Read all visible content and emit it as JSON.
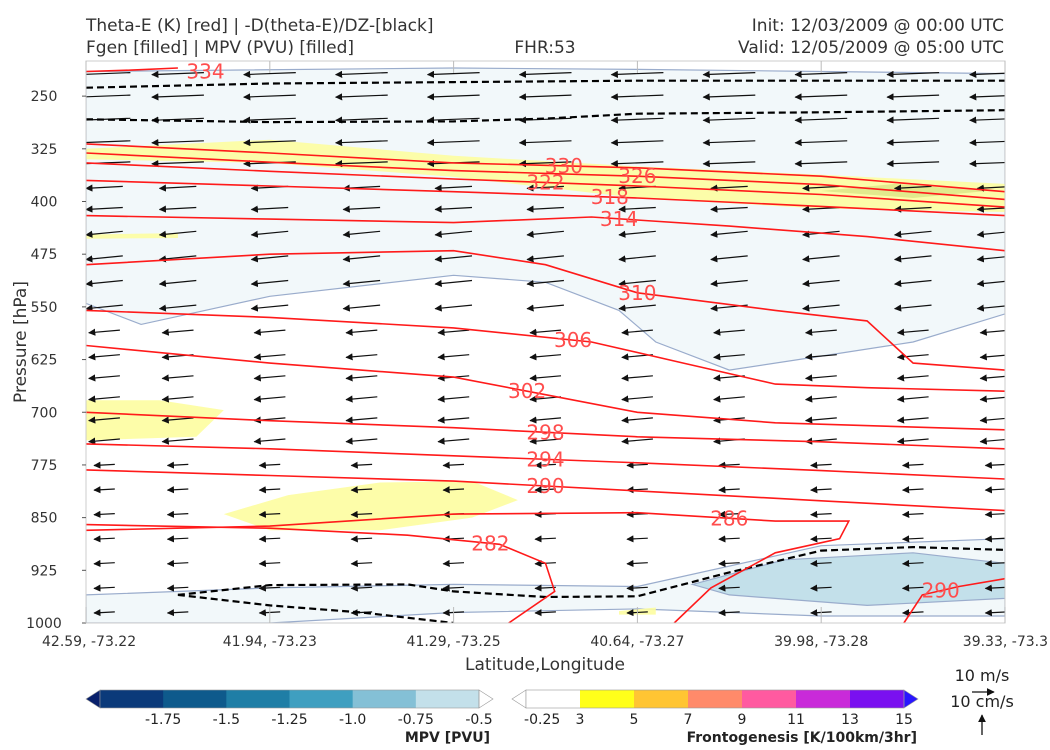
{
  "header": {
    "title_line1": "Theta-E (K) [red] | -D(theta-E)/DZ-[black]",
    "title_line2": "Fgen [filled] | MPV (PVU) [filled]",
    "fhr": "FHR:53",
    "init": "Init: 12/03/2009 @ 00:00 UTC",
    "valid": "Valid: 12/05/2009 @ 05:00 UTC"
  },
  "chart_data": {
    "type": "cross-section",
    "title": "Theta-E (K) [red] | -D(theta-E)/DZ-[black]  Fgen [filled] | MPV (PVU) [filled]",
    "xlabel": "Latitude,Longitude",
    "ylabel": "Pressure [hPa]",
    "ylim": [
      1000,
      200
    ],
    "x_ticks": [
      "42.59, -73.22",
      "41.94, -73.23",
      "41.29, -73.25",
      "40.64, -73.27",
      "39.98, -73.28",
      "39.33, -73.3"
    ],
    "y_ticks": [
      250,
      325,
      400,
      475,
      550,
      625,
      700,
      775,
      850,
      925,
      1000
    ],
    "theta_e_contours": [
      {
        "value": 334,
        "label": "334",
        "points": [
          [
            0.0,
            215
          ],
          [
            0.05,
            213
          ],
          [
            0.1,
            210
          ]
        ]
      },
      {
        "value": 330,
        "label": "330",
        "points": [
          [
            0.0,
            318
          ],
          [
            0.2,
            331
          ],
          [
            0.4,
            345
          ],
          [
            0.6,
            352
          ],
          [
            0.8,
            364
          ],
          [
            1.0,
            386
          ]
        ]
      },
      {
        "value": 326,
        "label": "326",
        "points": [
          [
            0.0,
            331
          ],
          [
            0.2,
            344
          ],
          [
            0.4,
            356
          ],
          [
            0.6,
            364
          ],
          [
            0.8,
            376
          ],
          [
            1.0,
            397
          ]
        ]
      },
      {
        "value": 322,
        "label": "322",
        "points": [
          [
            0.0,
            345
          ],
          [
            0.2,
            357
          ],
          [
            0.4,
            368
          ],
          [
            0.6,
            378
          ],
          [
            0.8,
            390
          ],
          [
            1.0,
            408
          ]
        ]
      },
      {
        "value": 318,
        "label": "318",
        "points": [
          [
            0.0,
            370
          ],
          [
            0.2,
            378
          ],
          [
            0.4,
            386
          ],
          [
            0.6,
            395
          ],
          [
            0.8,
            407
          ],
          [
            1.0,
            420
          ]
        ]
      },
      {
        "value": 314,
        "label": "314",
        "points": [
          [
            0.0,
            420
          ],
          [
            0.2,
            425
          ],
          [
            0.4,
            430
          ],
          [
            0.55,
            422
          ],
          [
            0.7,
            435
          ],
          [
            0.85,
            450
          ],
          [
            1.0,
            470
          ]
        ]
      },
      {
        "value": 310,
        "label": "310",
        "points": [
          [
            0.0,
            490
          ],
          [
            0.2,
            475
          ],
          [
            0.4,
            470
          ],
          [
            0.5,
            490
          ],
          [
            0.6,
            530
          ],
          [
            0.75,
            555
          ],
          [
            0.85,
            570
          ],
          [
            0.9,
            630
          ],
          [
            1.0,
            640
          ]
        ]
      },
      {
        "value": 306,
        "label": "306",
        "points": [
          [
            0.0,
            555
          ],
          [
            0.2,
            565
          ],
          [
            0.4,
            580
          ],
          [
            0.55,
            600
          ],
          [
            0.65,
            630
          ],
          [
            0.75,
            660
          ],
          [
            0.85,
            665
          ],
          [
            1.0,
            670
          ]
        ]
      },
      {
        "value": 302,
        "label": "302",
        "points": [
          [
            0.0,
            605
          ],
          [
            0.2,
            630
          ],
          [
            0.4,
            650
          ],
          [
            0.5,
            675
          ],
          [
            0.6,
            700
          ],
          [
            0.75,
            715
          ],
          [
            1.0,
            725
          ]
        ]
      },
      {
        "value": 298,
        "label": "298",
        "points": [
          [
            0.0,
            700
          ],
          [
            0.2,
            712
          ],
          [
            0.4,
            722
          ],
          [
            0.6,
            735
          ],
          [
            0.8,
            742
          ],
          [
            1.0,
            752
          ]
        ]
      },
      {
        "value": 294,
        "label": "294",
        "points": [
          [
            0.0,
            745
          ],
          [
            0.2,
            752
          ],
          [
            0.4,
            762
          ],
          [
            0.6,
            772
          ],
          [
            0.8,
            783
          ],
          [
            1.0,
            795
          ]
        ]
      },
      {
        "value": 290,
        "label": "290",
        "points": [
          [
            0.0,
            782
          ],
          [
            0.2,
            790
          ],
          [
            0.4,
            798
          ],
          [
            0.6,
            812
          ],
          [
            0.8,
            826
          ],
          [
            1.0,
            840
          ]
        ]
      },
      {
        "value": 286,
        "label": "286",
        "points": [
          [
            0.0,
            868
          ],
          [
            0.2,
            862
          ],
          [
            0.4,
            845
          ],
          [
            0.6,
            843
          ],
          [
            0.75,
            855
          ],
          [
            0.83,
            855
          ],
          [
            0.82,
            880
          ],
          [
            0.75,
            900
          ],
          [
            0.68,
            950
          ],
          [
            0.64,
            1000
          ]
        ]
      },
      {
        "value": 282,
        "label": "282",
        "points": [
          [
            0.0,
            860
          ],
          [
            0.2,
            865
          ],
          [
            0.35,
            875
          ],
          [
            0.45,
            888
          ],
          [
            0.5,
            915
          ],
          [
            0.51,
            955
          ],
          [
            0.46,
            1000
          ]
        ]
      },
      {
        "value": 290,
        "label": "290",
        "points": [
          [
            1.0,
            937
          ],
          [
            0.95,
            948
          ],
          [
            0.91,
            960
          ],
          [
            0.89,
            1000
          ]
        ]
      }
    ],
    "dthetae_dz_contours": [
      {
        "points": [
          [
            0.0,
            238
          ],
          [
            0.2,
            232
          ],
          [
            0.4,
            230
          ],
          [
            0.6,
            228
          ],
          [
            0.8,
            228
          ],
          [
            1.0,
            228
          ]
        ]
      },
      {
        "points": [
          [
            0.0,
            283
          ],
          [
            0.2,
            287
          ],
          [
            0.4,
            286
          ],
          [
            0.5,
            282
          ],
          [
            0.6,
            275
          ],
          [
            0.8,
            273
          ],
          [
            1.0,
            270
          ]
        ]
      },
      {
        "points": [
          [
            0.1,
            960
          ],
          [
            0.2,
            946
          ],
          [
            0.35,
            945
          ],
          [
            0.4,
            955
          ],
          [
            0.5,
            963
          ],
          [
            0.6,
            962
          ],
          [
            0.7,
            928
          ],
          [
            0.8,
            897
          ],
          [
            0.9,
            892
          ],
          [
            1.0,
            896
          ]
        ]
      },
      {
        "points": [
          [
            0.1,
            960
          ],
          [
            0.2,
            975
          ],
          [
            0.3,
            985
          ],
          [
            0.4,
            1000
          ]
        ]
      }
    ],
    "mpv_regions": [
      {
        "value": -0.25,
        "points": [
          [
            0.0,
            215
          ],
          [
            0.4,
            210
          ],
          [
            0.6,
            212
          ],
          [
            0.8,
            215
          ],
          [
            1.0,
            218
          ],
          [
            1.0,
            560
          ],
          [
            0.9,
            600
          ],
          [
            0.8,
            620
          ],
          [
            0.7,
            640
          ],
          [
            0.62,
            600
          ],
          [
            0.58,
            555
          ],
          [
            0.5,
            515
          ],
          [
            0.4,
            505
          ],
          [
            0.2,
            535
          ],
          [
            0.06,
            575
          ],
          [
            0.0,
            545
          ]
        ]
      },
      {
        "value": -0.25,
        "points": [
          [
            0.0,
            960
          ],
          [
            0.2,
            950
          ],
          [
            0.4,
            945
          ],
          [
            0.6,
            948
          ],
          [
            0.8,
            890
          ],
          [
            1.0,
            880
          ],
          [
            1.0,
            990
          ],
          [
            0.8,
            990
          ],
          [
            0.6,
            980
          ],
          [
            0.4,
            985
          ],
          [
            0.2,
            1000
          ],
          [
            0.0,
            1000
          ]
        ]
      },
      {
        "value": -0.5,
        "points": [
          [
            0.66,
            945
          ],
          [
            0.76,
            910
          ],
          [
            0.9,
            900
          ],
          [
            1.0,
            915
          ],
          [
            1.0,
            965
          ],
          [
            0.85,
            975
          ],
          [
            0.7,
            960
          ]
        ]
      }
    ],
    "fgen_regions": [
      {
        "value": 3,
        "points": [
          [
            0.0,
            325
          ],
          [
            0.2,
            312
          ],
          [
            0.4,
            335
          ],
          [
            0.6,
            350
          ],
          [
            0.8,
            362
          ],
          [
            1.0,
            375
          ],
          [
            1.0,
            415
          ],
          [
            0.8,
            410
          ],
          [
            0.6,
            395
          ],
          [
            0.4,
            365
          ],
          [
            0.2,
            345
          ],
          [
            0.0,
            340
          ]
        ]
      },
      {
        "value": 3,
        "points": [
          [
            0.0,
            683
          ],
          [
            0.08,
            683
          ],
          [
            0.15,
            697
          ],
          [
            0.12,
            735
          ],
          [
            0.0,
            740
          ]
        ]
      },
      {
        "value": 3,
        "points": [
          [
            0.15,
            845
          ],
          [
            0.22,
            818
          ],
          [
            0.32,
            800
          ],
          [
            0.42,
            798
          ],
          [
            0.47,
            825
          ],
          [
            0.42,
            850
          ],
          [
            0.32,
            868
          ],
          [
            0.2,
            868
          ]
        ]
      },
      {
        "value": 3,
        "points": [
          [
            0.58,
            983
          ],
          [
            0.62,
            978
          ],
          [
            0.62,
            988
          ],
          [
            0.58,
            988
          ]
        ]
      },
      {
        "value": 3,
        "points": [
          [
            0.0,
            447
          ],
          [
            0.1,
            445
          ],
          [
            0.1,
            452
          ],
          [
            0.0,
            453
          ]
        ]
      },
      {
        "value": 5,
        "points": [
          [
            0.8,
            385
          ],
          [
            0.88,
            375
          ],
          [
            0.98,
            385
          ],
          [
            0.9,
            395
          ]
        ]
      }
    ],
    "wind_reference": {
      "horizontal": "10 m/s",
      "vertical": "10 cm/s"
    },
    "mpv_colorbar": {
      "label": "MPV [PVU]",
      "ticks": [
        "-1.75",
        "-1.5",
        "-1.25",
        "-1.0",
        "-0.75",
        "-0.5",
        "-0.25"
      ],
      "colors": [
        "#08206b",
        "#0b3a7a",
        "#0e5a8c",
        "#1f7ea6",
        "#3f9fc0",
        "#84c0d6",
        "#c3e0ea",
        "#ffffff"
      ]
    },
    "fgen_colorbar": {
      "label": "Frontogenesis [K/100km/3hr]",
      "ticks": [
        "3",
        "5",
        "7",
        "9",
        "11",
        "13",
        "15"
      ],
      "colors": [
        "#ffffff",
        "#ffff1a",
        "#ffc533",
        "#ff8a6a",
        "#ff5aa0",
        "#c92ad9",
        "#7a10f0",
        "#2a16ff"
      ]
    },
    "colors": {
      "theta_e": "#ff1a1a",
      "label": "#ff4d4d",
      "mpv_edge": "#9aaccc",
      "fgen_fill": "#fdfda0"
    }
  }
}
